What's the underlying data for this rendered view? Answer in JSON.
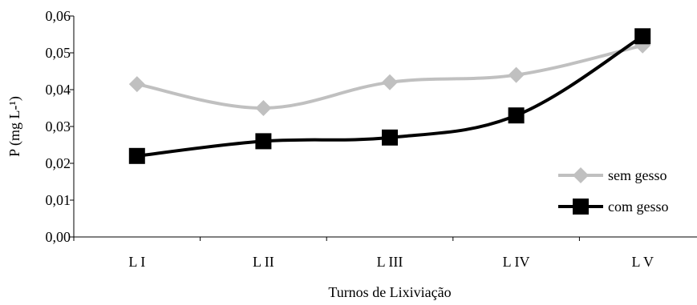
{
  "chart_data": {
    "type": "line",
    "xlabel": "Turnos de Lixiviação",
    "ylabel": "P (mg L-¹)",
    "categories": [
      "L I",
      "L II",
      "L III",
      "L IV",
      "L V"
    ],
    "ylim": [
      0,
      0.06
    ],
    "yticks": [
      0,
      0.01,
      0.02,
      0.03,
      0.04,
      0.05,
      0.06
    ],
    "ytick_labels": [
      "0,00",
      "0,01",
      "0,02",
      "0,03",
      "0,04",
      "0,05",
      "0,06"
    ],
    "grid": false,
    "legend_position": "right",
    "series": [
      {
        "name": "sem gesso",
        "values": [
          0.0415,
          0.035,
          0.042,
          0.044,
          0.052
        ],
        "color": "#c0c0c0",
        "marker": "diamond"
      },
      {
        "name": "com gesso",
        "values": [
          0.022,
          0.026,
          0.027,
          0.033,
          0.0545
        ],
        "color": "#000000",
        "marker": "square"
      }
    ]
  }
}
